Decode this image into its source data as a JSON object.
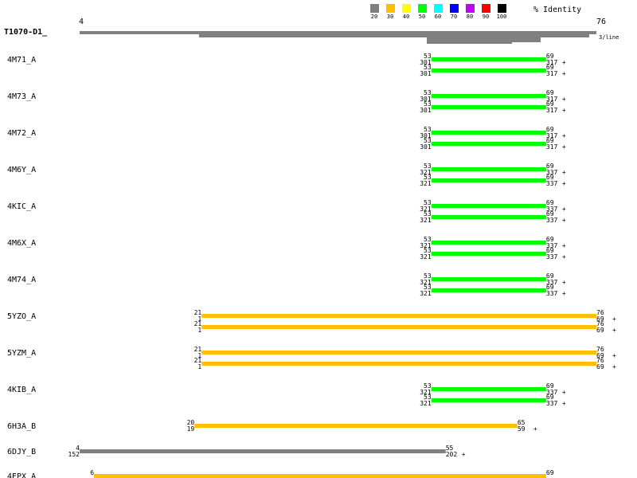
{
  "legend": {
    "title": "% Identity",
    "items": [
      {
        "label": "20",
        "color": "#808080"
      },
      {
        "label": "30",
        "color": "#ffbf00"
      },
      {
        "label": "40",
        "color": "#ffff00"
      },
      {
        "label": "50",
        "color": "#00ff00"
      },
      {
        "label": "60",
        "color": "#00ffff"
      },
      {
        "label": "70",
        "color": "#0000ff"
      },
      {
        "label": "80",
        "color": "#bf00ff"
      },
      {
        "label": "90",
        "color": "#ff0000"
      },
      {
        "label": "100",
        "color": "#000000"
      }
    ]
  },
  "query": {
    "name": "T1070-D1_",
    "start": "4",
    "end": "76",
    "scale_note": "3/line"
  },
  "hits": [
    {
      "name": "4M71_A",
      "alignments": [
        {
          "qs": "53",
          "qe": "69",
          "ss": "301",
          "se": "317",
          "color": "#00ff00"
        },
        {
          "qs": "53",
          "qe": "69",
          "ss": "301",
          "se": "317",
          "color": "#00ff00"
        }
      ]
    },
    {
      "name": "4M73_A",
      "alignments": [
        {
          "qs": "53",
          "qe": "69",
          "ss": "301",
          "se": "317",
          "color": "#00ff00"
        },
        {
          "qs": "53",
          "qe": "69",
          "ss": "301",
          "se": "317",
          "color": "#00ff00"
        }
      ]
    },
    {
      "name": "4M72_A",
      "alignments": [
        {
          "qs": "53",
          "qe": "69",
          "ss": "301",
          "se": "317",
          "color": "#00ff00"
        },
        {
          "qs": "53",
          "qe": "69",
          "ss": "301",
          "se": "317",
          "color": "#00ff00"
        }
      ]
    },
    {
      "name": "4M6Y_A",
      "alignments": [
        {
          "qs": "53",
          "qe": "69",
          "ss": "321",
          "se": "337",
          "color": "#00ff00"
        },
        {
          "qs": "53",
          "qe": "69",
          "ss": "321",
          "se": "337",
          "color": "#00ff00"
        }
      ]
    },
    {
      "name": "4KIC_A",
      "alignments": [
        {
          "qs": "53",
          "qe": "69",
          "ss": "321",
          "se": "337",
          "color": "#00ff00"
        },
        {
          "qs": "53",
          "qe": "69",
          "ss": "321",
          "se": "337",
          "color": "#00ff00"
        }
      ]
    },
    {
      "name": "4M6X_A",
      "alignments": [
        {
          "qs": "53",
          "qe": "69",
          "ss": "321",
          "se": "337",
          "color": "#00ff00"
        },
        {
          "qs": "53",
          "qe": "69",
          "ss": "321",
          "se": "337",
          "color": "#00ff00"
        }
      ]
    },
    {
      "name": "4M74_A",
      "alignments": [
        {
          "qs": "53",
          "qe": "69",
          "ss": "321",
          "se": "337",
          "color": "#00ff00"
        },
        {
          "qs": "53",
          "qe": "69",
          "ss": "321",
          "se": "337",
          "color": "#00ff00"
        }
      ]
    },
    {
      "name": "5YZO_A",
      "alignments": [
        {
          "qs": "21",
          "qe": "76",
          "ss": "1",
          "se": "69",
          "color": "#ffbf00"
        },
        {
          "qs": "21",
          "qe": "76",
          "ss": "1",
          "se": "69",
          "color": "#ffbf00"
        }
      ]
    },
    {
      "name": "5YZM_A",
      "alignments": [
        {
          "qs": "21",
          "qe": "76",
          "ss": "1",
          "se": "69",
          "color": "#ffbf00"
        },
        {
          "qs": "21",
          "qe": "76",
          "ss": "1",
          "se": "69",
          "color": "#ffbf00"
        }
      ]
    },
    {
      "name": "4KIB_A",
      "alignments": [
        {
          "qs": "53",
          "qe": "69",
          "ss": "321",
          "se": "337",
          "color": "#00ff00"
        },
        {
          "qs": "53",
          "qe": "69",
          "ss": "321",
          "se": "337",
          "color": "#00ff00"
        }
      ]
    },
    {
      "name": "6H3A_B",
      "alignments": [
        {
          "qs": "20",
          "qe": "65",
          "ss": "19",
          "se": "59",
          "color": "#ffbf00"
        }
      ]
    },
    {
      "name": "6DJY_B",
      "alignments": [
        {
          "qs": "4",
          "qe": "55",
          "ss": "152",
          "se": "202",
          "color": "#808080"
        }
      ]
    },
    {
      "name": "4EPX_A",
      "alignments": [
        {
          "qs": "6",
          "qe": "69",
          "ss": "",
          "se": "",
          "color": "#ffbf00"
        }
      ]
    }
  ]
}
